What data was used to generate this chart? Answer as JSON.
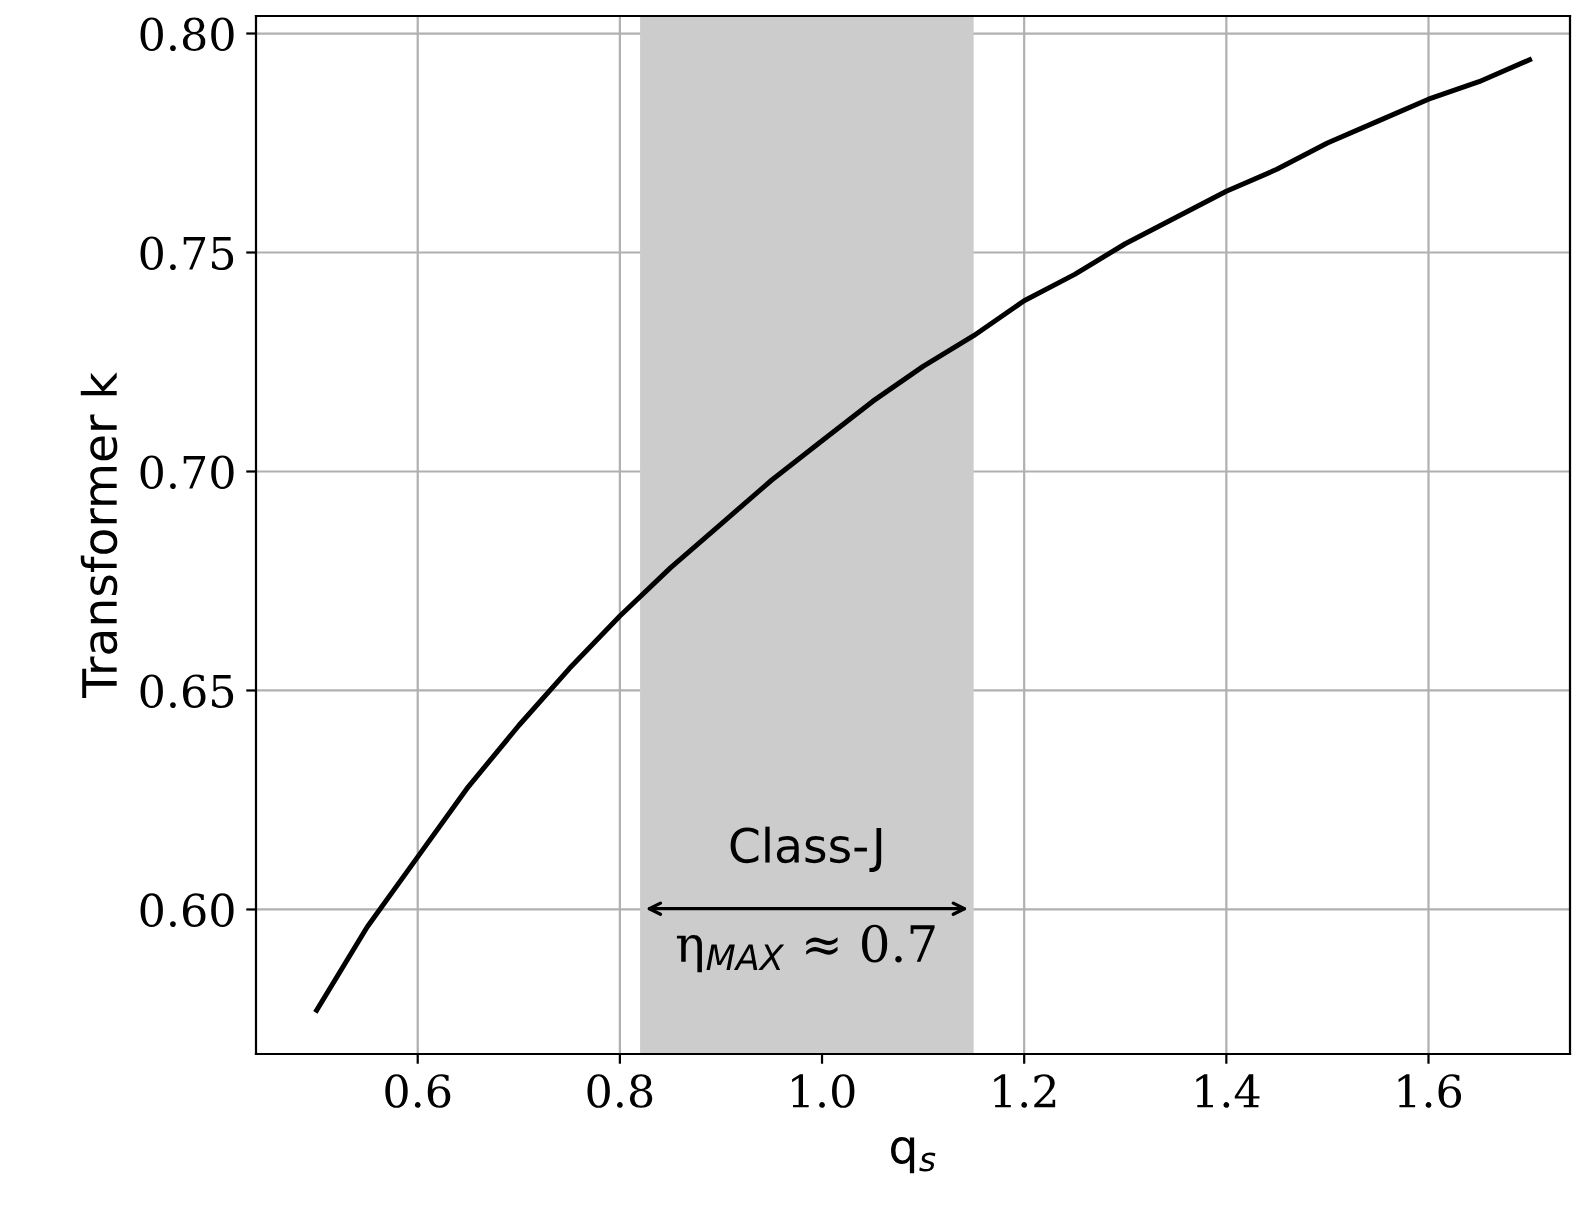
{
  "chart_data": {
    "type": "line",
    "xlabel": "q$_{s}$",
    "ylabel": "Transformer k",
    "x": [
      0.5,
      0.55,
      0.6,
      0.65,
      0.7,
      0.75,
      0.8,
      0.85,
      0.9,
      0.95,
      1.0,
      1.05,
      1.1,
      1.15,
      1.2,
      1.25,
      1.3,
      1.35,
      1.4,
      1.45,
      1.5,
      1.55,
      1.6,
      1.65,
      1.7
    ],
    "series": [
      {
        "color": "#000000",
        "values": [
          0.577,
          0.596,
          0.612,
          0.628,
          0.642,
          0.655,
          0.667,
          0.678,
          0.688,
          0.698,
          0.707,
          0.716,
          0.724,
          0.731,
          0.739,
          0.745,
          0.752,
          0.758,
          0.764,
          0.769,
          0.775,
          0.78,
          0.785,
          0.789,
          0.794
        ]
      }
    ],
    "xlim": [
      0.44,
      1.74
    ],
    "ylim": [
      0.567,
      0.804
    ],
    "xticks": [
      0.6,
      0.8,
      {
        "value": 1.0,
        "label": "1.0"
      },
      1.2,
      1.4,
      1.6
    ],
    "yticks": [
      {
        "value": 0.6,
        "label": "0.60"
      },
      0.65,
      {
        "value": 0.7,
        "label": "0.70"
      },
      0.75,
      {
        "value": 0.8,
        "label": "0.80"
      }
    ],
    "bands": [
      {
        "axis": "x",
        "from": 0.82,
        "to": 1.15,
        "label": "Class-J",
        "color": "#cccccc"
      }
    ],
    "annotations": [
      "η$_{MAX}$ ≈ 0.7"
    ],
    "grid": true,
    "marker": "none",
    "line_style": "solid"
  }
}
